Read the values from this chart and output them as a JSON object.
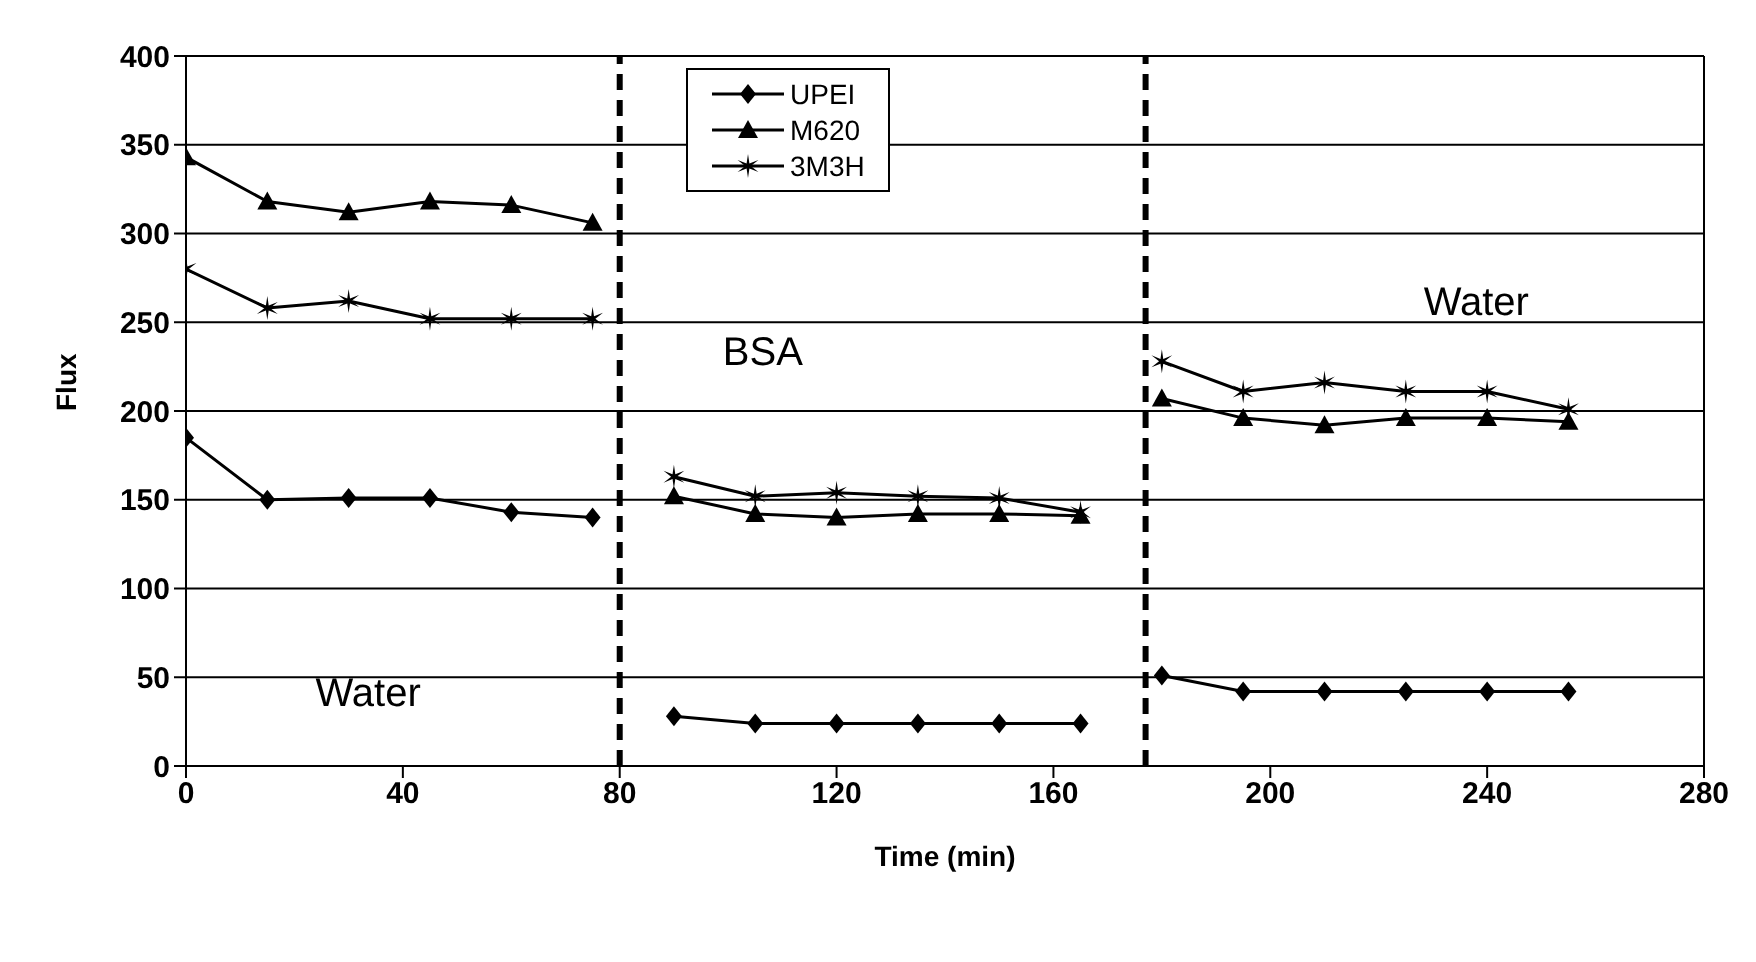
{
  "chart_data": {
    "type": "line",
    "xlabel": "Time (min)",
    "ylabel": "Flux",
    "x": [
      0,
      15,
      30,
      45,
      60,
      75,
      80,
      90,
      105,
      120,
      135,
      150,
      165,
      177,
      180,
      195,
      210,
      225,
      240,
      255
    ],
    "series": [
      {
        "name": "UPEI",
        "color": "#000000",
        "marker": "diamond",
        "values": [
          185,
          150,
          151,
          151,
          143,
          140,
          null,
          28,
          24,
          24,
          24,
          24,
          24,
          null,
          51,
          42,
          42,
          42,
          42,
          42
        ]
      },
      {
        "name": "M620",
        "color": "#000000",
        "marker": "triangle",
        "values": [
          343,
          318,
          312,
          318,
          316,
          306,
          null,
          152,
          142,
          140,
          142,
          142,
          141,
          null,
          207,
          196,
          192,
          196,
          196,
          194
        ]
      },
      {
        "name": "3M3H",
        "color": "#000000",
        "marker": "cross",
        "values": [
          280,
          258,
          262,
          252,
          252,
          252,
          null,
          163,
          152,
          154,
          152,
          151,
          143,
          null,
          228,
          211,
          216,
          211,
          211,
          201
        ]
      }
    ],
    "xlim": [
      0,
      280
    ],
    "xticks": [
      0,
      40,
      80,
      120,
      160,
      200,
      240,
      280
    ],
    "ylim": [
      0,
      400
    ],
    "yticks": [
      0,
      50,
      100,
      150,
      200,
      250,
      300,
      350,
      400
    ],
    "ref_lines": [
      {
        "axis": "x",
        "value": 80,
        "color": "#000000",
        "line_style": "dashed"
      },
      {
        "axis": "x",
        "value": 177,
        "color": "#000000",
        "line_style": "dashed"
      }
    ],
    "annotations": [
      "Water",
      "BSA",
      "Water"
    ],
    "grid": "y",
    "legend": "top",
    "line_style": "solid"
  }
}
